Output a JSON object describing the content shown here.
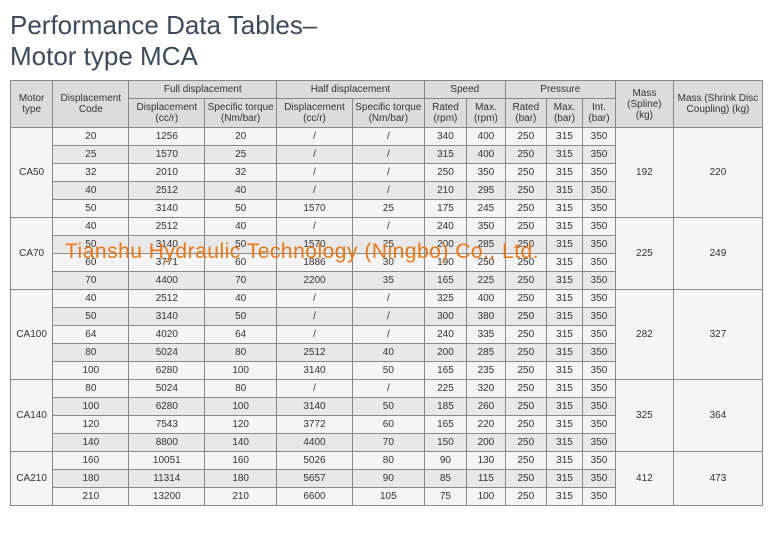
{
  "title_line1": "Performance Data Tables–",
  "title_line2": "Motor type MCA",
  "watermark": "Tianshu Hydraulic Technology (Ningbo) Co., Ltd.",
  "headers": {
    "motor_type": "Motor type",
    "disp_code": "Displacement Code",
    "full_disp": "Full displacement",
    "half_disp": "Half displacement",
    "speed": "Speed",
    "pressure": "Pressure",
    "mass_spline": "Mass (Spline) (kg)",
    "mass_disc": "Mass (Shrink Disc Coupling) (kg)",
    "disp_ccr": "Displacement (cc/r)",
    "sp_torque": "Specific torque (Nm/bar)",
    "rated_rpm": "Rated (rpm)",
    "max_rpm": "Max. (rpm)",
    "rated_bar": "Rated (bar)",
    "max_bar": "Max. (bar)",
    "int_bar": "Int. (bar)"
  },
  "groups": [
    {
      "motor": "CA50",
      "mass_s": "192",
      "mass_d": "220",
      "rows": [
        [
          "20",
          "1256",
          "20",
          "/",
          "/",
          "340",
          "400",
          "250",
          "315",
          "350"
        ],
        [
          "25",
          "1570",
          "25",
          "/",
          "/",
          "315",
          "400",
          "250",
          "315",
          "350"
        ],
        [
          "32",
          "2010",
          "32",
          "/",
          "/",
          "250",
          "350",
          "250",
          "315",
          "350"
        ],
        [
          "40",
          "2512",
          "40",
          "/",
          "/",
          "210",
          "295",
          "250",
          "315",
          "350"
        ],
        [
          "50",
          "3140",
          "50",
          "1570",
          "25",
          "175",
          "245",
          "250",
          "315",
          "350"
        ]
      ]
    },
    {
      "motor": "CA70",
      "mass_s": "225",
      "mass_d": "249",
      "rows": [
        [
          "40",
          "2512",
          "40",
          "/",
          "/",
          "240",
          "350",
          "250",
          "315",
          "350"
        ],
        [
          "50",
          "3140",
          "50",
          "1570",
          "25",
          "200",
          "285",
          "250",
          "315",
          "350"
        ],
        [
          "60",
          "3771",
          "60",
          "1886",
          "30",
          "190",
          "250",
          "250",
          "315",
          "350"
        ],
        [
          "70",
          "4400",
          "70",
          "2200",
          "35",
          "165",
          "225",
          "250",
          "315",
          "350"
        ]
      ]
    },
    {
      "motor": "CA100",
      "mass_s": "282",
      "mass_d": "327",
      "rows": [
        [
          "40",
          "2512",
          "40",
          "/",
          "/",
          "325",
          "400",
          "250",
          "315",
          "350"
        ],
        [
          "50",
          "3140",
          "50",
          "/",
          "/",
          "300",
          "380",
          "250",
          "315",
          "350"
        ],
        [
          "64",
          "4020",
          "64",
          "/",
          "/",
          "240",
          "335",
          "250",
          "315",
          "350"
        ],
        [
          "80",
          "5024",
          "80",
          "2512",
          "40",
          "200",
          "285",
          "250",
          "315",
          "350"
        ],
        [
          "100",
          "6280",
          "100",
          "3140",
          "50",
          "165",
          "235",
          "250",
          "315",
          "350"
        ]
      ]
    },
    {
      "motor": "CA140",
      "mass_s": "325",
      "mass_d": "364",
      "rows": [
        [
          "80",
          "5024",
          "80",
          "/",
          "/",
          "225",
          "320",
          "250",
          "315",
          "350"
        ],
        [
          "100",
          "6280",
          "100",
          "3140",
          "50",
          "185",
          "260",
          "250",
          "315",
          "350"
        ],
        [
          "120",
          "7543",
          "120",
          "3772",
          "60",
          "165",
          "220",
          "250",
          "315",
          "350"
        ],
        [
          "140",
          "8800",
          "140",
          "4400",
          "70",
          "150",
          "200",
          "250",
          "315",
          "350"
        ]
      ]
    },
    {
      "motor": "CA210",
      "mass_s": "412",
      "mass_d": "473",
      "rows": [
        [
          "160",
          "10051",
          "160",
          "5026",
          "80",
          "90",
          "130",
          "250",
          "315",
          "350"
        ],
        [
          "180",
          "11314",
          "180",
          "5657",
          "90",
          "85",
          "115",
          "250",
          "315",
          "350"
        ],
        [
          "210",
          "13200",
          "210",
          "6600",
          "105",
          "75",
          "100",
          "250",
          "315",
          "350"
        ]
      ]
    }
  ],
  "colors": {
    "title": "#3b4a5a",
    "header_bg": "#dcdcdc",
    "row_odd": "#f5f5f5",
    "row_even": "#e8e8e8",
    "border": "#888888",
    "watermark": "#e67817"
  }
}
